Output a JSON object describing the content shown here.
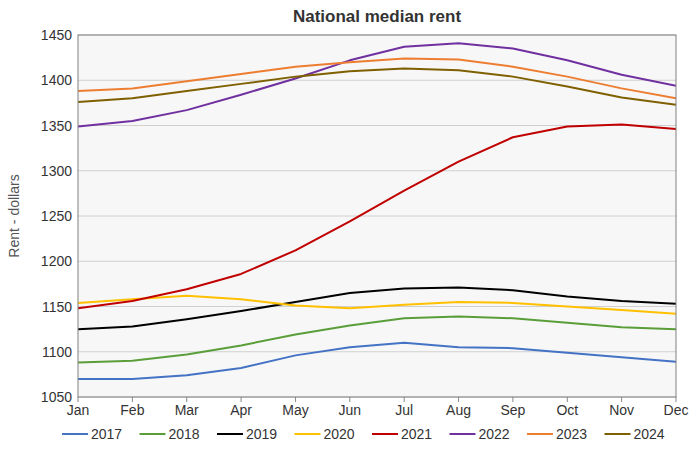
{
  "chart_data": {
    "type": "line",
    "title": "National median rent",
    "y_label": "Rent - dollars",
    "categories": [
      "Jan",
      "Feb",
      "Mar",
      "Apr",
      "May",
      "Jun",
      "Jul",
      "Aug",
      "Sep",
      "Oct",
      "Nov",
      "Dec"
    ],
    "series": [
      {
        "name": "2017",
        "color": "#4472c4",
        "values": [
          1070,
          1070,
          1074,
          1082,
          1096,
          1105,
          1110,
          1105,
          1104,
          1099,
          1094,
          1089
        ]
      },
      {
        "name": "2018",
        "color": "#5a9e3a",
        "values": [
          1088,
          1090,
          1097,
          1107,
          1119,
          1129,
          1137,
          1139,
          1137,
          1132,
          1127,
          1125
        ]
      },
      {
        "name": "2019",
        "color": "#000000",
        "values": [
          1125,
          1128,
          1136,
          1145,
          1155,
          1165,
          1170,
          1171,
          1168,
          1161,
          1156,
          1153
        ]
      },
      {
        "name": "2020",
        "color": "#ffc000",
        "values": [
          1154,
          1158,
          1162,
          1158,
          1151,
          1148,
          1152,
          1155,
          1154,
          1150,
          1146,
          1142
        ]
      },
      {
        "name": "2021",
        "color": "#c00000",
        "values": [
          1148,
          1156,
          1169,
          1186,
          1212,
          1244,
          1278,
          1310,
          1337,
          1349,
          1351,
          1346
        ]
      },
      {
        "name": "2022",
        "color": "#7030a0",
        "values": [
          1349,
          1355,
          1367,
          1384,
          1402,
          1422,
          1437,
          1441,
          1435,
          1422,
          1406,
          1394
        ]
      },
      {
        "name": "2023",
        "color": "#ed7d31",
        "values": [
          1388,
          1391,
          1399,
          1407,
          1415,
          1420,
          1424,
          1423,
          1415,
          1404,
          1391,
          1380
        ]
      },
      {
        "name": "2024",
        "color": "#7f6000",
        "values": [
          1376,
          1380,
          1388,
          1396,
          1404,
          1410,
          1413,
          1411,
          1404,
          1393,
          1381,
          1373
        ]
      }
    ],
    "ylim": [
      1050,
      1450
    ],
    "yticks": [
      1050,
      1100,
      1150,
      1200,
      1250,
      1300,
      1350,
      1400,
      1450
    ],
    "grid": true,
    "legend": "bottom"
  }
}
